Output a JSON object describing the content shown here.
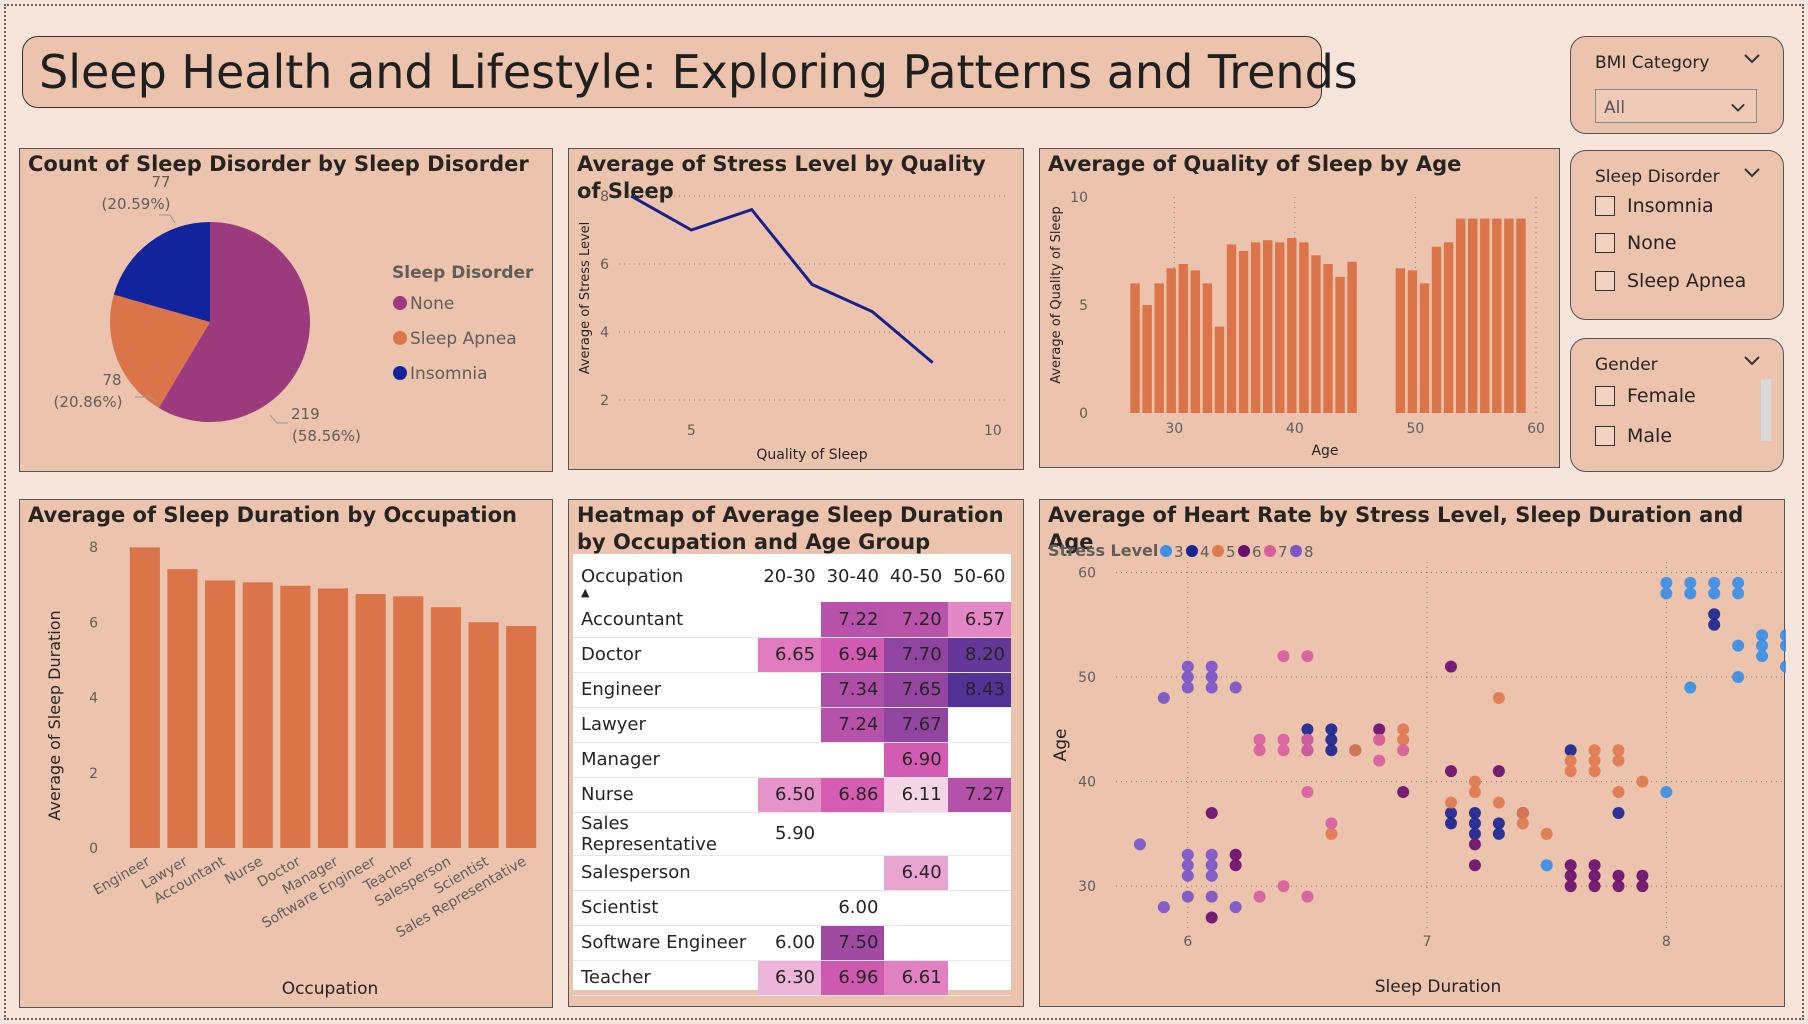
{
  "page": {
    "title": "Sleep Health and Lifestyle: Exploring Patterns and Trends"
  },
  "slicers": {
    "bmi": {
      "title": "BMI Category",
      "value": "All"
    },
    "sleep_disorder": {
      "title": "Sleep Disorder",
      "options": [
        "Insomnia",
        "None",
        "Sleep Apnea"
      ]
    },
    "gender": {
      "title": "Gender",
      "options": [
        "Female",
        "Male"
      ]
    }
  },
  "colors": {
    "page_bg": "#f7e4da",
    "panel_bg": "#ecc3ad",
    "bar": "#db7449",
    "line": "#1a1f8c",
    "pie_none": "#9b3b7e",
    "pie_sleep_apnea": "#db7449",
    "pie_insomnia": "#12239e"
  },
  "chart_data": [
    {
      "id": "pie",
      "type": "pie",
      "title": "Count of Sleep Disorder by Sleep Disorder",
      "legend_title": "Sleep Disorder",
      "legend_position": "right",
      "slices": [
        {
          "name": "None",
          "value": 219,
          "label": "219",
          "pct": "(58.56%)",
          "color": "#9b3b7e"
        },
        {
          "name": "Sleep Apnea",
          "value": 78,
          "label": "78",
          "pct": "(20.86%)",
          "color": "#db7449"
        },
        {
          "name": "Insomnia",
          "value": 77,
          "label": "77",
          "pct": "(20.59%)",
          "color": "#12239e"
        }
      ]
    },
    {
      "id": "line",
      "type": "line",
      "title": "Average of Stress Level by Quality of Sleep",
      "xlabel": "Quality of Sleep",
      "ylabel": "Average of Stress Level",
      "xlim": [
        3.8,
        10.2
      ],
      "ylim": [
        1.5,
        8.5
      ],
      "xticks": [
        5,
        10
      ],
      "yticks": [
        2,
        4,
        6,
        8
      ],
      "x": [
        4,
        5,
        6,
        7,
        8,
        9
      ],
      "y": [
        8.0,
        7.0,
        7.6,
        5.4,
        4.6,
        3.1
      ]
    },
    {
      "id": "agebars",
      "type": "bar",
      "title": "Average of Quality of Sleep by Age",
      "xlabel": "Age",
      "ylabel": "Average of Quality of Sleep",
      "xlim": [
        26,
        60
      ],
      "ylim": [
        0,
        10
      ],
      "xticks": [
        30,
        40,
        50,
        60
      ],
      "yticks": [
        0,
        5,
        10
      ],
      "x": [
        27,
        28,
        29,
        30,
        31,
        32,
        33,
        34,
        35,
        36,
        37,
        38,
        39,
        40,
        41,
        42,
        43,
        44,
        45,
        49,
        50,
        51,
        52,
        53,
        54,
        55,
        56,
        57,
        58,
        59
      ],
      "values": [
        6.0,
        5.0,
        6.0,
        6.7,
        6.9,
        6.6,
        6.0,
        4.0,
        7.8,
        7.5,
        7.9,
        8.0,
        7.9,
        8.1,
        7.9,
        7.3,
        6.9,
        6.3,
        7.0,
        6.7,
        6.6,
        6.0,
        7.7,
        7.9,
        9.0,
        9.0,
        9.0,
        9.0,
        9.0,
        9.0
      ]
    },
    {
      "id": "occbars",
      "type": "bar",
      "title": "Average of Sleep Duration by Occupation",
      "xlabel": "Occupation",
      "ylabel": "Average of Sleep Duration",
      "ylim": [
        0,
        8
      ],
      "yticks": [
        0,
        2,
        4,
        6,
        8
      ],
      "categories": [
        "Engineer",
        "Lawyer",
        "Accountant",
        "Nurse",
        "Doctor",
        "Manager",
        "Software Engineer",
        "Teacher",
        "Salesperson",
        "Scientist",
        "Sales Representative"
      ],
      "values": [
        7.99,
        7.41,
        7.11,
        7.06,
        6.97,
        6.9,
        6.75,
        6.69,
        6.4,
        6.0,
        5.9
      ]
    },
    {
      "id": "heatmap",
      "type": "table",
      "title": "Heatmap of Average Sleep Duration by Occupation and Age Group",
      "row_header": "Occupation",
      "columns": [
        "20-30",
        "30-40",
        "40-50",
        "50-60"
      ],
      "rows": [
        {
          "name": "Accountant",
          "cells": [
            "",
            "7.22",
            "7.20",
            "6.57"
          ]
        },
        {
          "name": "Doctor",
          "cells": [
            "6.65",
            "6.94",
            "7.70",
            "8.20"
          ]
        },
        {
          "name": "Engineer",
          "cells": [
            "",
            "7.34",
            "7.65",
            "8.43"
          ]
        },
        {
          "name": "Lawyer",
          "cells": [
            "",
            "7.24",
            "7.67",
            ""
          ]
        },
        {
          "name": "Manager",
          "cells": [
            "",
            "",
            "6.90",
            ""
          ]
        },
        {
          "name": "Nurse",
          "cells": [
            "6.50",
            "6.86",
            "6.11",
            "7.27"
          ]
        },
        {
          "name": "Sales Representative",
          "cells": [
            "5.90",
            "",
            "",
            ""
          ]
        },
        {
          "name": "Salesperson",
          "cells": [
            "",
            "",
            "6.40",
            ""
          ]
        },
        {
          "name": "Scientist",
          "cells": [
            "",
            "6.00",
            "",
            ""
          ]
        },
        {
          "name": "Software Engineer",
          "cells": [
            "6.00",
            "7.50",
            "",
            ""
          ]
        },
        {
          "name": "Teacher",
          "cells": [
            "6.30",
            "6.96",
            "6.61",
            ""
          ]
        }
      ]
    },
    {
      "id": "scatter",
      "type": "scatter",
      "title": "Average of Heart Rate by Stress Level, Sleep Duration and Age",
      "legend_title": "Stress Level",
      "legend_position": "top-left",
      "xlabel": "Sleep Duration",
      "ylabel": "Age",
      "xlim": [
        5.7,
        8.5
      ],
      "ylim": [
        26,
        61
      ],
      "xticks": [
        6,
        7,
        8
      ],
      "yticks": [
        30,
        40,
        50,
        60
      ],
      "series": [
        {
          "name": "3",
          "color": "#3b8fe8",
          "points": [
            [
              8.0,
              59
            ],
            [
              8.1,
              59
            ],
            [
              8.2,
              59
            ],
            [
              8.3,
              59
            ],
            [
              8.0,
              58
            ],
            [
              8.1,
              58
            ],
            [
              8.2,
              58
            ],
            [
              8.3,
              58
            ],
            [
              8.4,
              53
            ],
            [
              8.5,
              53
            ],
            [
              8.4,
              54
            ],
            [
              8.5,
              54
            ],
            [
              8.3,
              53
            ],
            [
              8.4,
              52
            ],
            [
              8.5,
              51
            ],
            [
              8.3,
              50
            ],
            [
              8.1,
              49
            ],
            [
              8.0,
              39
            ],
            [
              7.5,
              32
            ]
          ]
        },
        {
          "name": "4",
          "color": "#1a2690",
          "points": [
            [
              6.5,
              45
            ],
            [
              6.6,
              45
            ],
            [
              6.5,
              44
            ],
            [
              6.6,
              44
            ],
            [
              6.5,
              43
            ],
            [
              6.6,
              43
            ],
            [
              6.7,
              43
            ],
            [
              7.1,
              37
            ],
            [
              7.2,
              37
            ],
            [
              7.1,
              36
            ],
            [
              7.2,
              36
            ],
            [
              7.3,
              36
            ],
            [
              7.2,
              35
            ],
            [
              7.3,
              35
            ],
            [
              7.4,
              37
            ],
            [
              7.6,
              43
            ],
            [
              7.8,
              37
            ],
            [
              8.2,
              56
            ],
            [
              8.2,
              55
            ]
          ]
        },
        {
          "name": "5",
          "color": "#e07b4e",
          "points": [
            [
              6.6,
              35
            ],
            [
              6.7,
              43
            ],
            [
              6.8,
              44
            ],
            [
              6.9,
              45
            ],
            [
              6.9,
              44
            ],
            [
              7.1,
              38
            ],
            [
              7.2,
              39
            ],
            [
              7.2,
              40
            ],
            [
              7.3,
              48
            ],
            [
              7.3,
              38
            ],
            [
              7.4,
              37
            ],
            [
              7.4,
              36
            ],
            [
              7.5,
              35
            ],
            [
              7.6,
              42
            ],
            [
              7.6,
              41
            ],
            [
              7.7,
              43
            ],
            [
              7.7,
              42
            ],
            [
              7.7,
              41
            ],
            [
              7.8,
              43
            ],
            [
              7.8,
              42
            ],
            [
              7.9,
              40
            ],
            [
              7.8,
              39
            ]
          ]
        },
        {
          "name": "6",
          "color": "#6a0f6c",
          "points": [
            [
              6.1,
              37
            ],
            [
              6.1,
              27
            ],
            [
              6.2,
              33
            ],
            [
              6.2,
              32
            ],
            [
              6.8,
              45
            ],
            [
              6.9,
              39
            ],
            [
              7.1,
              51
            ],
            [
              7.1,
              41
            ],
            [
              7.2,
              34
            ],
            [
              7.2,
              32
            ],
            [
              7.3,
              41
            ],
            [
              7.6,
              32
            ],
            [
              7.6,
              31
            ],
            [
              7.6,
              30
            ],
            [
              7.7,
              32
            ],
            [
              7.7,
              31
            ],
            [
              7.7,
              30
            ],
            [
              7.8,
              31
            ],
            [
              7.8,
              30
            ],
            [
              7.9,
              31
            ],
            [
              7.9,
              30
            ]
          ]
        },
        {
          "name": "7",
          "color": "#d95f9e",
          "points": [
            [
              6.3,
              44
            ],
            [
              6.3,
              43
            ],
            [
              6.4,
              44
            ],
            [
              6.4,
              43
            ],
            [
              6.5,
              44
            ],
            [
              6.5,
              43
            ],
            [
              6.4,
              52
            ],
            [
              6.5,
              52
            ],
            [
              6.5,
              39
            ],
            [
              6.6,
              36
            ],
            [
              6.8,
              44
            ],
            [
              6.8,
              42
            ],
            [
              6.9,
              43
            ],
            [
              6.3,
              29
            ],
            [
              6.4,
              30
            ],
            [
              6.5,
              29
            ]
          ]
        },
        {
          "name": "8",
          "color": "#7c55c8",
          "points": [
            [
              6.0,
              51
            ],
            [
              6.0,
              50
            ],
            [
              6.0,
              49
            ],
            [
              6.1,
              51
            ],
            [
              6.1,
              50
            ],
            [
              6.1,
              49
            ],
            [
              5.9,
              48
            ],
            [
              6.2,
              49
            ],
            [
              6.0,
              33
            ],
            [
              6.0,
              32
            ],
            [
              6.0,
              31
            ],
            [
              6.1,
              33
            ],
            [
              6.1,
              32
            ],
            [
              6.0,
              29
            ],
            [
              6.1,
              29
            ],
            [
              5.9,
              28
            ],
            [
              5.8,
              34
            ],
            [
              6.2,
              28
            ],
            [
              6.1,
              31
            ]
          ]
        }
      ]
    }
  ]
}
